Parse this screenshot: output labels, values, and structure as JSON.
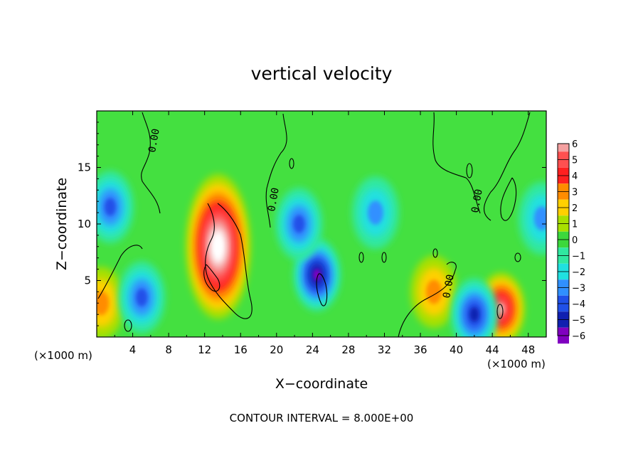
{
  "chart_data": {
    "type": "heatmap",
    "title": "vertical velocity",
    "xlabel": "X−coordinate",
    "ylabel": "Z−coordinate",
    "x_unit_left": "(×1000 m)",
    "x_unit_right": "(×1000 m)",
    "xlim": [
      0,
      50
    ],
    "ylim": [
      0,
      20
    ],
    "x_ticks": [
      4,
      8,
      12,
      16,
      20,
      24,
      28,
      32,
      36,
      40,
      44,
      48
    ],
    "y_ticks": [
      5,
      10,
      15
    ],
    "x_tick_labels": [
      "4",
      "8",
      "12",
      "16",
      "20",
      "24",
      "28",
      "32",
      "36",
      "40",
      "44",
      "48"
    ],
    "y_tick_labels": [
      "5",
      "10",
      "15"
    ],
    "colorbar": {
      "levels": [
        6,
        5,
        4,
        3,
        2,
        1,
        0,
        -1,
        -2,
        -3,
        -4,
        -5,
        -6
      ],
      "labels": [
        "6",
        "5",
        "4",
        "3",
        "2",
        "1",
        "0",
        "−1",
        "−2",
        "−3",
        "−4",
        "−5",
        "−6"
      ],
      "colors": [
        "#f4a0a0",
        "#ff5050",
        "#ff2020",
        "#ff8c00",
        "#ffd000",
        "#a8e000",
        "#3cd83c",
        "#30e8a0",
        "#20e0e0",
        "#3090ff",
        "#2050e8",
        "#1020b0",
        "#8000c0"
      ]
    },
    "contour_labels": [
      "0.00",
      "0.00",
      "0.00",
      "0.00"
    ],
    "contour_interval_text": "CONTOUR INTERVAL = 8.000E+00",
    "features": [
      {
        "kind": "updraft",
        "x": 13.5,
        "z": 8,
        "peak": 8
      },
      {
        "kind": "updraft",
        "x": 45,
        "z": 2.5,
        "peak": 6
      },
      {
        "kind": "updraft",
        "x": 37.5,
        "z": 4,
        "peak": 3
      },
      {
        "kind": "updraft",
        "x": 0.5,
        "z": 3,
        "peak": 3
      },
      {
        "kind": "downdraft",
        "x": 5,
        "z": 3.5,
        "peak": -4
      },
      {
        "kind": "downdraft",
        "x": 24.5,
        "z": 5.5,
        "peak": -6
      },
      {
        "kind": "downdraft",
        "x": 1.5,
        "z": 11.5,
        "peak": -4
      },
      {
        "kind": "downdraft",
        "x": 22.5,
        "z": 10,
        "peak": -4
      },
      {
        "kind": "downdraft",
        "x": 31,
        "z": 11,
        "peak": -3
      },
      {
        "kind": "downdraft",
        "x": 42,
        "z": 2,
        "peak": -5
      },
      {
        "kind": "downdraft",
        "x": 49.5,
        "z": 10.5,
        "peak": -3
      }
    ]
  }
}
